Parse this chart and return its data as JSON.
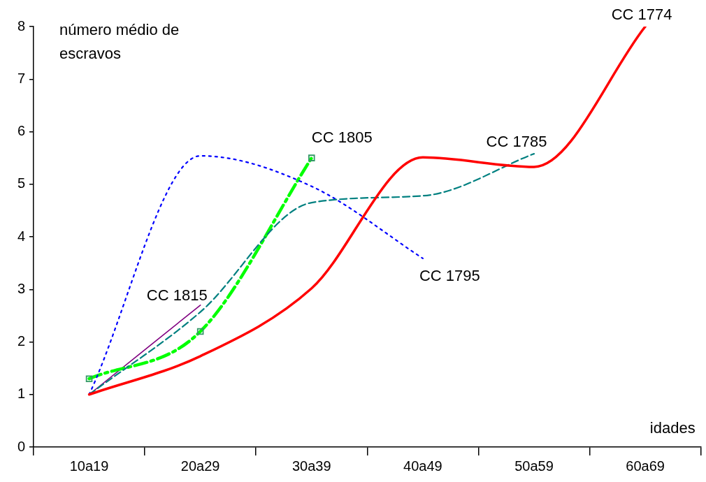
{
  "chart_data": {
    "type": "line",
    "ylabel": "número médio de escravos",
    "xlabel": "idades",
    "categories": [
      "10a19",
      "20a29",
      "30a39",
      "40a49",
      "50a59",
      "60a69"
    ],
    "ylim": [
      0,
      8
    ],
    "yticks": [
      0,
      1,
      2,
      3,
      4,
      5,
      6,
      7,
      8
    ],
    "grid": false,
    "legend": false,
    "series": [
      {
        "name": "CC 1774",
        "color": "#ff0000",
        "line_style": "solid",
        "marker": "none",
        "values": [
          1.0,
          1.73,
          3.02,
          5.51,
          5.33,
          8.0
        ]
      },
      {
        "name": "CC 1785",
        "color": "#008080",
        "line_style": "dashed",
        "marker": "none",
        "values": [
          1.0,
          2.57,
          4.65,
          4.78,
          5.58,
          null
        ]
      },
      {
        "name": "CC 1795",
        "color": "#0000ff",
        "line_style": "dotted",
        "marker": "none",
        "values": [
          1.0,
          5.54,
          4.96,
          3.59,
          null,
          null
        ]
      },
      {
        "name": "CC 1805",
        "color": "#00ff00",
        "line_style": "dashdot",
        "marker": "square",
        "values": [
          1.3,
          2.2,
          5.5,
          null,
          null,
          null
        ]
      },
      {
        "name": "CC 1815",
        "color": "#800080",
        "line_style": "solid",
        "marker": "none",
        "values": [
          1.0,
          2.7,
          null,
          null,
          null,
          null
        ]
      }
    ]
  }
}
